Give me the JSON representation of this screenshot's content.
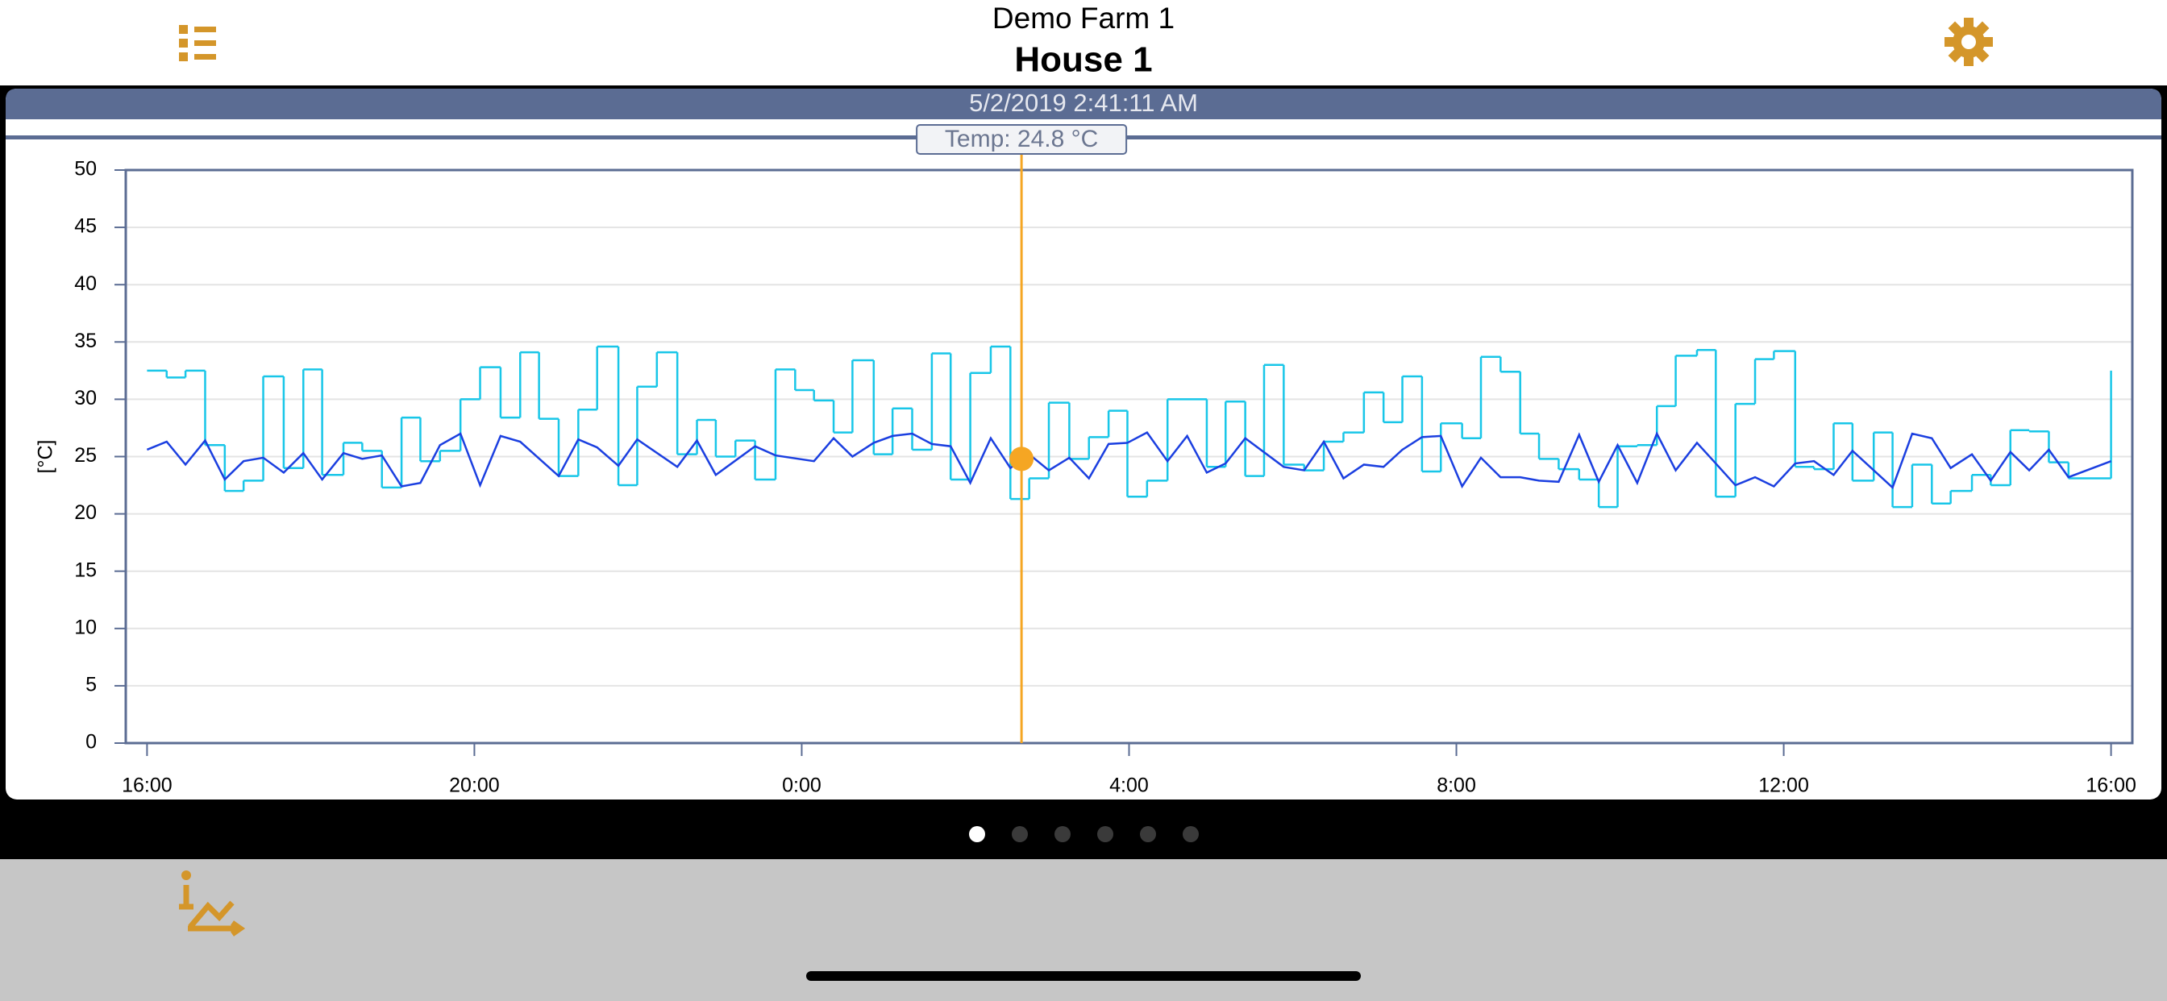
{
  "header": {
    "subtitle": "Demo Farm 1",
    "title": "House 1"
  },
  "chart_data": {
    "type": "line",
    "y_label": "[°C]",
    "xlim": [
      15.74,
      40.26
    ],
    "xticks": [
      {
        "value": 16,
        "label": "16:00"
      },
      {
        "value": 20,
        "label": "20:00"
      },
      {
        "value": 24,
        "label": "0:00"
      },
      {
        "value": 28,
        "label": "4:00"
      },
      {
        "value": 32,
        "label": "8:00"
      },
      {
        "value": 36,
        "label": "12:00"
      },
      {
        "value": 40,
        "label": "16:00"
      }
    ],
    "ylim": [
      0,
      50
    ],
    "yticks": [
      0,
      5,
      10,
      15,
      20,
      25,
      30,
      35,
      40,
      45,
      50
    ],
    "grid": true,
    "cursor": {
      "x": 26.686,
      "value": 24.8,
      "label": "Temp: 24.8 °C",
      "time": "5/2/2019 2:41:11 AM",
      "color": "#f5a623"
    },
    "series": [
      {
        "color": "#18c6e8",
        "drawstyle": "steps-post",
        "x": [
          16.0,
          16.24,
          16.47,
          16.71,
          16.95,
          17.18,
          17.42,
          17.67,
          17.91,
          18.14,
          18.4,
          18.63,
          18.87,
          19.11,
          19.34,
          19.58,
          19.83,
          20.07,
          20.32,
          20.56,
          20.79,
          21.03,
          21.27,
          21.5,
          21.76,
          21.99,
          22.23,
          22.48,
          22.72,
          22.95,
          23.19,
          23.43,
          23.68,
          23.92,
          24.15,
          24.39,
          24.62,
          24.88,
          25.11,
          25.35,
          25.59,
          25.82,
          26.06,
          26.31,
          26.55,
          26.78,
          27.02,
          27.27,
          27.51,
          27.75,
          27.98,
          28.22,
          28.47,
          28.95,
          29.18,
          29.42,
          29.65,
          29.89,
          30.14,
          30.38,
          30.62,
          30.87,
          31.11,
          31.34,
          31.58,
          31.81,
          32.07,
          32.3,
          32.54,
          32.78,
          33.01,
          33.25,
          33.5,
          33.74,
          33.97,
          34.21,
          34.45,
          34.68,
          34.94,
          35.17,
          35.41,
          35.65,
          35.88,
          36.14,
          36.37,
          36.61,
          36.84,
          37.1,
          37.33,
          37.57,
          37.81,
          38.04,
          38.3,
          38.53,
          38.77,
          39.0,
          39.24,
          39.48,
          40.0
        ],
        "values": [
          32.5,
          31.9,
          32.5,
          26.0,
          22.0,
          22.9,
          32.0,
          24.0,
          32.6,
          23.4,
          26.2,
          25.5,
          22.3,
          28.4,
          24.6,
          25.5,
          30.0,
          32.8,
          28.4,
          34.1,
          28.3,
          23.3,
          29.1,
          34.6,
          22.5,
          31.1,
          34.1,
          25.2,
          28.2,
          25.0,
          26.4,
          23.0,
          32.6,
          30.8,
          29.9,
          27.1,
          33.4,
          25.2,
          29.2,
          25.6,
          34.0,
          23.0,
          32.3,
          34.6,
          21.3,
          23.1,
          29.7,
          24.8,
          26.7,
          29.0,
          21.5,
          22.9,
          30.0,
          24.1,
          29.8,
          23.3,
          33.0,
          24.3,
          23.8,
          26.3,
          27.1,
          30.6,
          28.0,
          32.0,
          23.7,
          27.9,
          26.6,
          33.7,
          32.4,
          27.0,
          24.8,
          23.9,
          23.0,
          20.6,
          25.9,
          26.0,
          29.4,
          33.8,
          34.3,
          21.5,
          29.6,
          33.5,
          34.2,
          24.1,
          23.9,
          27.9,
          22.9,
          27.1,
          20.6,
          24.3,
          20.9,
          22.0,
          23.4,
          22.5,
          27.3,
          27.2,
          24.5,
          23.1,
          32.5
        ]
      },
      {
        "color": "#1b3fe0",
        "drawstyle": "line",
        "x": [
          16.0,
          16.24,
          16.47,
          16.71,
          16.95,
          17.18,
          17.42,
          17.67,
          17.91,
          18.14,
          18.4,
          18.63,
          18.87,
          19.11,
          19.34,
          19.58,
          19.83,
          20.07,
          20.32,
          20.56,
          21.03,
          21.27,
          21.5,
          21.76,
          21.99,
          22.48,
          22.72,
          22.95,
          23.43,
          23.68,
          24.15,
          24.39,
          24.62,
          24.88,
          25.11,
          25.35,
          25.59,
          25.82,
          26.06,
          26.31,
          26.55,
          26.78,
          27.02,
          27.27,
          27.51,
          27.75,
          27.98,
          28.22,
          28.47,
          28.71,
          28.95,
          29.18,
          29.42,
          29.89,
          30.14,
          30.38,
          30.62,
          30.87,
          31.11,
          31.34,
          31.58,
          31.81,
          32.07,
          32.3,
          32.54,
          32.78,
          33.01,
          33.25,
          33.5,
          33.74,
          33.97,
          34.21,
          34.45,
          34.68,
          34.94,
          35.17,
          35.41,
          35.65,
          35.88,
          36.14,
          36.37,
          36.61,
          36.84,
          37.33,
          37.57,
          37.81,
          38.04,
          38.3,
          38.53,
          38.77,
          39.0,
          39.24,
          39.48,
          40.0
        ],
        "values": [
          25.6,
          26.3,
          24.3,
          26.4,
          23.0,
          24.6,
          24.9,
          23.6,
          25.3,
          23.0,
          25.3,
          24.8,
          25.1,
          22.4,
          22.7,
          26.0,
          27.0,
          22.5,
          26.8,
          26.3,
          23.3,
          26.5,
          25.8,
          24.2,
          26.5,
          24.1,
          26.4,
          23.4,
          25.9,
          25.1,
          24.6,
          26.6,
          25.0,
          26.2,
          26.8,
          27.0,
          26.1,
          25.9,
          22.7,
          26.6,
          24.0,
          25.2,
          23.8,
          24.9,
          23.1,
          26.1,
          26.2,
          27.1,
          24.6,
          26.8,
          23.6,
          24.4,
          26.6,
          24.1,
          23.8,
          26.3,
          23.1,
          24.3,
          24.1,
          25.6,
          26.7,
          26.8,
          22.4,
          24.9,
          23.2,
          23.2,
          22.9,
          22.8,
          26.9,
          22.8,
          26.0,
          22.7,
          27.0,
          23.8,
          26.2,
          24.4,
          22.5,
          23.2,
          22.4,
          24.4,
          24.6,
          23.4,
          25.5,
          22.3,
          27.0,
          26.6,
          24.0,
          25.2,
          22.9,
          25.4,
          23.8,
          25.6,
          23.2,
          24.6
        ]
      }
    ]
  }
}
